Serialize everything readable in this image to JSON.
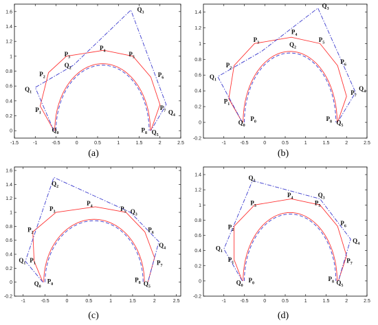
{
  "colors": {
    "red": "#ff3333",
    "blue": "#3a3acd",
    "axis": "#000000"
  },
  "chart_data": [
    {
      "panel_label": "(a)",
      "type": "line",
      "xlim": [
        -1.5,
        2.5
      ],
      "ylim": [
        -0.1,
        1.7
      ],
      "xticks": [
        "-1.5",
        "-1",
        "-0.5",
        "0",
        "0.5",
        "1",
        "1.5",
        "2",
        "2.5"
      ],
      "xtick_values": [
        -1.5,
        -1,
        -0.5,
        0,
        0.5,
        1,
        1.5,
        2,
        2.5
      ],
      "yticks": [
        "0",
        "0.2",
        "0.4",
        "0.6",
        "0.8",
        "1",
        "1.2",
        "1.4",
        "1.6"
      ],
      "ytick_values": [
        0,
        0.2,
        0.4,
        0.6,
        0.8,
        1,
        1.2,
        1.4,
        1.6
      ],
      "series": [
        {
          "style": "solid-red",
          "points": [
            [
              -0.55,
              0
            ],
            [
              -0.88,
              0.33
            ],
            [
              -0.68,
              0.78
            ],
            [
              -0.25,
              1.0
            ],
            [
              0.65,
              1.08
            ],
            [
              1.35,
              1.0
            ],
            [
              1.78,
              0.72
            ],
            [
              2.0,
              0.35
            ],
            [
              1.78,
              0
            ]
          ]
        },
        {
          "style": "dashdot-blue",
          "points": [
            [
              -0.55,
              0
            ],
            [
              -1.0,
              0.58
            ],
            [
              -0.08,
              0.88
            ],
            [
              1.3,
              1.62
            ],
            [
              2.15,
              0.35
            ],
            [
              1.78,
              0
            ]
          ]
        }
      ],
      "labels": [
        {
          "t": "Q",
          "s": "0",
          "x": -0.6,
          "y": -0.02
        },
        {
          "t": "P",
          "s": "1",
          "x": -1.0,
          "y": 0.25
        },
        {
          "t": "Q",
          "s": "1",
          "x": -1.25,
          "y": 0.53
        },
        {
          "t": "P",
          "s": "2",
          "x": -0.9,
          "y": 0.73
        },
        {
          "t": "Q",
          "s": "2",
          "x": -0.3,
          "y": 0.85
        },
        {
          "t": "P",
          "s": "3",
          "x": -0.3,
          "y": 1.0
        },
        {
          "t": "P",
          "s": "4",
          "x": 0.55,
          "y": 1.08
        },
        {
          "t": "P",
          "s": "5",
          "x": 1.25,
          "y": 1.0
        },
        {
          "t": "Q",
          "s": "3",
          "x": 1.45,
          "y": 1.6
        },
        {
          "t": "P",
          "s": "6",
          "x": 1.95,
          "y": 0.72
        },
        {
          "t": "P",
          "s": "7",
          "x": 2.0,
          "y": 0.28
        },
        {
          "t": "Q",
          "s": "4",
          "x": 2.2,
          "y": 0.22
        },
        {
          "t": "P",
          "s": "8",
          "x": 1.55,
          "y": -0.02
        },
        {
          "t": "Q",
          "s": "5",
          "x": 1.8,
          "y": -0.05
        }
      ]
    },
    {
      "panel_label": "(b)",
      "type": "line",
      "xlim": [
        -1.5,
        2.5
      ],
      "ylim": [
        -0.2,
        1.5
      ],
      "xticks": [
        "-1",
        "-0.5",
        "0",
        "0.5",
        "1",
        "1.5",
        "2",
        "2.5"
      ],
      "xtick_values": [
        -1,
        -0.5,
        0,
        0.5,
        1,
        1.5,
        2,
        2.5
      ],
      "yticks": [
        "-0.2",
        "0",
        "0.2",
        "0.4",
        "0.6",
        "0.8",
        "1",
        "1.2",
        "1.4"
      ],
      "ytick_values": [
        -0.2,
        0,
        0.2,
        0.4,
        0.6,
        0.8,
        1,
        1.2,
        1.4
      ],
      "series": [
        {
          "style": "solid-red",
          "points": [
            [
              -0.55,
              0
            ],
            [
              -0.88,
              0.3
            ],
            [
              -0.75,
              0.72
            ],
            [
              -0.25,
              1.0
            ],
            [
              0.65,
              1.08
            ],
            [
              1.35,
              1.0
            ],
            [
              1.78,
              0.72
            ],
            [
              2.0,
              0.33
            ],
            [
              1.78,
              0
            ]
          ]
        },
        {
          "style": "dashdot-blue",
          "points": [
            [
              -0.55,
              0
            ],
            [
              -1.15,
              0.58
            ],
            [
              -0.08,
              0.9
            ],
            [
              1.3,
              1.45
            ],
            [
              2.22,
              0.38
            ],
            [
              1.78,
              0
            ]
          ]
        }
      ],
      "labels": [
        {
          "t": "Q",
          "s": "0",
          "x": -0.65,
          "y": -0.03
        },
        {
          "t": "P",
          "s": "0",
          "x": -0.35,
          "y": 0.02
        },
        {
          "t": "P",
          "s": "1",
          "x": -1.0,
          "y": 0.24
        },
        {
          "t": "Q",
          "s": "1",
          "x": -1.35,
          "y": 0.55
        },
        {
          "t": "P",
          "s": "2",
          "x": -0.95,
          "y": 0.7
        },
        {
          "t": "P",
          "s": "3",
          "x": -0.28,
          "y": 1.02
        },
        {
          "t": "Q",
          "s": "2",
          "x": 0.6,
          "y": 0.96
        },
        {
          "t": "P",
          "s": "4",
          "x": 0.65,
          "y": 1.12
        },
        {
          "t": "P",
          "s": "5",
          "x": 1.32,
          "y": 1.02
        },
        {
          "t": "Q",
          "s": "3",
          "x": 1.4,
          "y": 1.45
        },
        {
          "t": "P",
          "s": "6",
          "x": 1.85,
          "y": 0.74
        },
        {
          "t": "P",
          "s": "7",
          "x": 2.1,
          "y": 0.35
        },
        {
          "t": "Q",
          "s": "4",
          "x": 2.3,
          "y": 0.4
        },
        {
          "t": "P",
          "s": "8",
          "x": 1.5,
          "y": 0.02
        },
        {
          "t": "Q",
          "s": "5",
          "x": 1.75,
          "y": -0.03
        }
      ]
    },
    {
      "panel_label": "(c)",
      "type": "line",
      "xlim": [
        -1.2,
        2.6
      ],
      "ylim": [
        -0.2,
        1.65
      ],
      "xticks": [
        "-1",
        "-0.5",
        "0",
        "0.5",
        "1",
        "1.5",
        "2",
        "2.5"
      ],
      "xtick_values": [
        -1,
        -0.5,
        0,
        0.5,
        1,
        1.5,
        2,
        2.5
      ],
      "yticks": [
        "-0.2",
        "0",
        "0.2",
        "0.4",
        "0.6",
        "0.8",
        "1",
        "1.2",
        "1.4",
        "1.6"
      ],
      "ytick_values": [
        -0.2,
        0,
        0.2,
        0.4,
        0.6,
        0.8,
        1,
        1.2,
        1.4,
        1.6
      ],
      "series": [
        {
          "style": "solid-red",
          "points": [
            [
              -0.55,
              0
            ],
            [
              -0.75,
              0.3
            ],
            [
              -0.78,
              0.72
            ],
            [
              -0.25,
              1.0
            ],
            [
              0.65,
              1.08
            ],
            [
              1.35,
              1.0
            ],
            [
              1.78,
              0.72
            ],
            [
              2.0,
              0.35
            ],
            [
              1.85,
              0
            ]
          ]
        },
        {
          "style": "dashdot-blue",
          "points": [
            [
              -0.55,
              0
            ],
            [
              -0.95,
              0.3
            ],
            [
              -0.3,
              1.5
            ],
            [
              1.45,
              1.0
            ],
            [
              2.1,
              0.58
            ],
            [
              1.85,
              0
            ]
          ]
        }
      ],
      "labels": [
        {
          "t": "Q",
          "s": "0",
          "x": -0.75,
          "y": -0.05
        },
        {
          "t": "P",
          "s": "0",
          "x": -0.45,
          "y": -0.02
        },
        {
          "t": "Q",
          "s": "1",
          "x": -1.1,
          "y": 0.28
        },
        {
          "t": "P",
          "s": "1",
          "x": -0.85,
          "y": 0.28
        },
        {
          "t": "P",
          "s": "2",
          "x": -0.9,
          "y": 0.72
        },
        {
          "t": "Q",
          "s": "2",
          "x": -0.35,
          "y": 1.38
        },
        {
          "t": "P",
          "s": "3",
          "x": -0.4,
          "y": 1.02
        },
        {
          "t": "P",
          "s": "4",
          "x": 0.45,
          "y": 1.1
        },
        {
          "t": "P",
          "s": "5",
          "x": 1.22,
          "y": 1.02
        },
        {
          "t": "Q",
          "s": "3",
          "x": 1.45,
          "y": 0.98
        },
        {
          "t": "P",
          "s": "6",
          "x": 1.85,
          "y": 0.72
        },
        {
          "t": "Q",
          "s": "4",
          "x": 2.1,
          "y": 0.5
        },
        {
          "t": "P",
          "s": "7",
          "x": 2.05,
          "y": 0.25
        },
        {
          "t": "P",
          "s": "8",
          "x": 1.55,
          "y": 0.0
        },
        {
          "t": "Q",
          "s": "5",
          "x": 1.75,
          "y": -0.05
        }
      ]
    },
    {
      "panel_label": "(d)",
      "type": "line",
      "xlim": [
        -1.5,
        2.5
      ],
      "ylim": [
        -0.2,
        1.5
      ],
      "xticks": [
        "-1",
        "-0.5",
        "0",
        "0.5",
        "1",
        "1.5",
        "2",
        "2.5"
      ],
      "xtick_values": [
        -1,
        -0.5,
        0,
        0.5,
        1,
        1.5,
        2,
        2.5
      ],
      "yticks": [
        "-0.2",
        "0",
        "0.2",
        "0.4",
        "0.6",
        "0.8",
        "1",
        "1.2",
        "1.4"
      ],
      "ytick_values": [
        -0.2,
        0,
        0.2,
        0.4,
        0.6,
        0.8,
        1,
        1.2,
        1.4
      ],
      "series": [
        {
          "style": "solid-red",
          "points": [
            [
              -0.55,
              0
            ],
            [
              -0.75,
              0.28
            ],
            [
              -0.75,
              0.72
            ],
            [
              -0.25,
              1.0
            ],
            [
              0.65,
              1.08
            ],
            [
              1.35,
              1.0
            ],
            [
              1.78,
              0.72
            ],
            [
              2.0,
              0.33
            ],
            [
              1.8,
              0
            ]
          ]
        },
        {
          "style": "dashdot-blue",
          "points": [
            [
              -0.55,
              0
            ],
            [
              -1.0,
              0.42
            ],
            [
              -0.3,
              1.32
            ],
            [
              1.35,
              1.08
            ],
            [
              2.1,
              0.55
            ],
            [
              1.8,
              0
            ]
          ]
        }
      ],
      "labels": [
        {
          "t": "Q",
          "s": "0",
          "x": -0.7,
          "y": -0.05
        },
        {
          "t": "P",
          "s": "0",
          "x": -0.4,
          "y": -0.02
        },
        {
          "t": "P",
          "s": "1",
          "x": -0.9,
          "y": 0.25
        },
        {
          "t": "Q",
          "s": "1",
          "x": -1.2,
          "y": 0.4
        },
        {
          "t": "P",
          "s": "2",
          "x": -0.9,
          "y": 0.68
        },
        {
          "t": "Q",
          "s": "2",
          "x": -0.4,
          "y": 1.33
        },
        {
          "t": "P",
          "s": "3",
          "x": -0.35,
          "y": 1.0
        },
        {
          "t": "P",
          "s": "4",
          "x": 0.55,
          "y": 1.1
        },
        {
          "t": "P",
          "s": "5",
          "x": 1.22,
          "y": 1.0
        },
        {
          "t": "Q",
          "s": "3",
          "x": 1.3,
          "y": 1.1
        },
        {
          "t": "P",
          "s": "6",
          "x": 1.85,
          "y": 0.73
        },
        {
          "t": "Q",
          "s": "4",
          "x": 2.15,
          "y": 0.5
        },
        {
          "t": "P",
          "s": "7",
          "x": 2.0,
          "y": 0.24
        },
        {
          "t": "P",
          "s": "8",
          "x": 1.55,
          "y": 0.0
        },
        {
          "t": "Q",
          "s": "5",
          "x": 1.75,
          "y": -0.05
        }
      ]
    }
  ]
}
